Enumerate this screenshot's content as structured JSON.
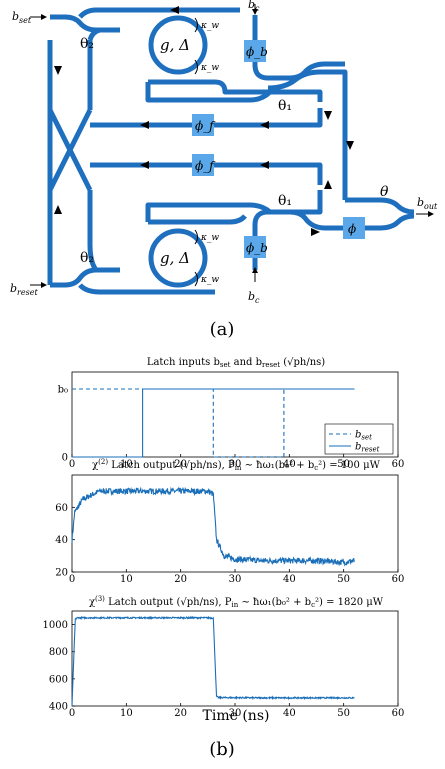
{
  "diagram": {
    "caption": "(a)",
    "labels": {
      "b_set": "b_set",
      "b_reset": "b_reset",
      "b_c_top": "b_c",
      "b_c_bottom": "b_c",
      "b_out": "b_out",
      "theta2_top": "θ₂",
      "theta2_bottom": "θ₂",
      "ring_top": "g, Δ",
      "ring_bottom": "g, Δ",
      "kappa_w_1": "κ_w",
      "kappa_w_2": "κ_w",
      "kappa_w_3": "κ_w",
      "kappa_w_4": "κ_w",
      "phi_b_top": "ϕ_b",
      "phi_b_bottom": "ϕ_b",
      "phi_f_top": "ϕ_f",
      "phi_f_bottom": "ϕ_f",
      "theta1_top": "θ₁",
      "theta1_bottom": "θ₁",
      "theta": "θ",
      "phi": "ϕ"
    }
  },
  "figure_caption": "(b)",
  "chart_data": [
    {
      "type": "line",
      "title": "Latch inputs b_set and b_reset (√ph/ns)",
      "xlim": [
        0,
        60
      ],
      "ylim": [
        0,
        1.25
      ],
      "x_ticks": [
        0,
        10,
        20,
        30,
        40,
        50,
        60
      ],
      "y_ticks": [
        {
          "value": 0,
          "label": "0"
        },
        {
          "value": 1,
          "label": "b₀"
        }
      ],
      "legend_position": "bottom-right",
      "series": [
        {
          "name": "b_set",
          "style": "dashed",
          "x": [
            0,
            26,
            26,
            39,
            39,
            52
          ],
          "y": [
            1,
            1,
            0,
            0,
            1,
            1
          ]
        },
        {
          "name": "b_reset",
          "style": "solid",
          "x": [
            0,
            13,
            13,
            52
          ],
          "y": [
            0,
            0,
            1,
            1
          ]
        }
      ]
    },
    {
      "type": "line",
      "title": "χ⁽²⁾ Latch output (√ph/ns), P_in ∼ ħω₁(b₀² + b_c²) = 100 μW",
      "xlim": [
        0,
        60
      ],
      "ylim": [
        20,
        80
      ],
      "x_ticks": [
        0,
        10,
        20,
        30,
        40,
        50,
        60
      ],
      "y_ticks": [
        20,
        40,
        60
      ],
      "series": [
        {
          "name": "",
          "x": [
            0,
            0.5,
            2,
            5,
            10,
            15,
            20,
            25,
            26,
            26.6,
            28,
            30,
            35,
            40,
            45,
            50,
            52
          ],
          "y": [
            40,
            57,
            65,
            70,
            70,
            70,
            70,
            70,
            68,
            40,
            30,
            28,
            27,
            27,
            27,
            26,
            27
          ]
        }
      ]
    },
    {
      "type": "line",
      "title": "χ⁽³⁾ Latch output (√ph/ns), P_in ∼ ħω₁(b₀² + b_c²) = 1820 μW",
      "xlabel": "Time (ns)",
      "xlim": [
        0,
        60
      ],
      "ylim": [
        400,
        1100
      ],
      "x_ticks": [
        0,
        10,
        20,
        30,
        40,
        50,
        60
      ],
      "y_ticks": [
        400,
        600,
        800,
        1000
      ],
      "series": [
        {
          "name": "",
          "x": [
            0,
            0.6,
            1,
            10,
            20,
            25,
            26,
            26.6,
            27,
            35,
            45,
            52
          ],
          "y": [
            400,
            1040,
            1050,
            1050,
            1050,
            1050,
            1048,
            470,
            462,
            460,
            460,
            460
          ]
        }
      ]
    }
  ]
}
